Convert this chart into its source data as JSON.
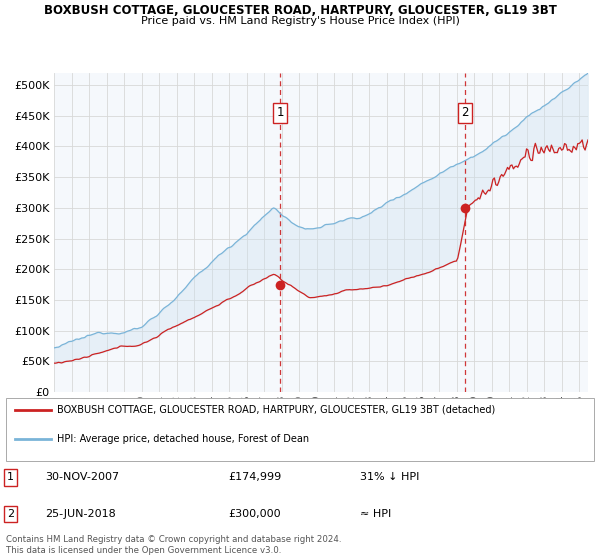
{
  "title1": "BOXBUSH COTTAGE, GLOUCESTER ROAD, HARTPURY, GLOUCESTER, GL19 3BT",
  "title2": "Price paid vs. HM Land Registry's House Price Index (HPI)",
  "ylabel_ticks": [
    "£0",
    "£50K",
    "£100K",
    "£150K",
    "£200K",
    "£250K",
    "£300K",
    "£350K",
    "£400K",
    "£450K",
    "£500K"
  ],
  "ytick_vals": [
    0,
    50000,
    100000,
    150000,
    200000,
    250000,
    300000,
    350000,
    400000,
    450000,
    500000
  ],
  "ylim": [
    0,
    520000
  ],
  "xlim_start": 1995.0,
  "xlim_end": 2025.5,
  "hpi_color": "#7ab4d8",
  "price_color": "#cc2222",
  "vline_color": "#cc2222",
  "fill_color": "#cce0f0",
  "marker1_date": 2007.92,
  "marker1_price": 174999,
  "marker2_date": 2018.48,
  "marker2_price": 300000,
  "legend_label_red": "BOXBUSH COTTAGE, GLOUCESTER ROAD, HARTPURY, GLOUCESTER, GL19 3BT (detached)",
  "legend_label_blue": "HPI: Average price, detached house, Forest of Dean",
  "annotation1_label": "1",
  "annotation2_label": "2",
  "footnote": "Contains HM Land Registry data © Crown copyright and database right 2024.\nThis data is licensed under the Open Government Licence v3.0.",
  "background_color": "#f0f0f0",
  "plot_bg_color": "#f5f8fc",
  "grid_color": "#d8d8d8",
  "legend_bg": "#ffffff"
}
